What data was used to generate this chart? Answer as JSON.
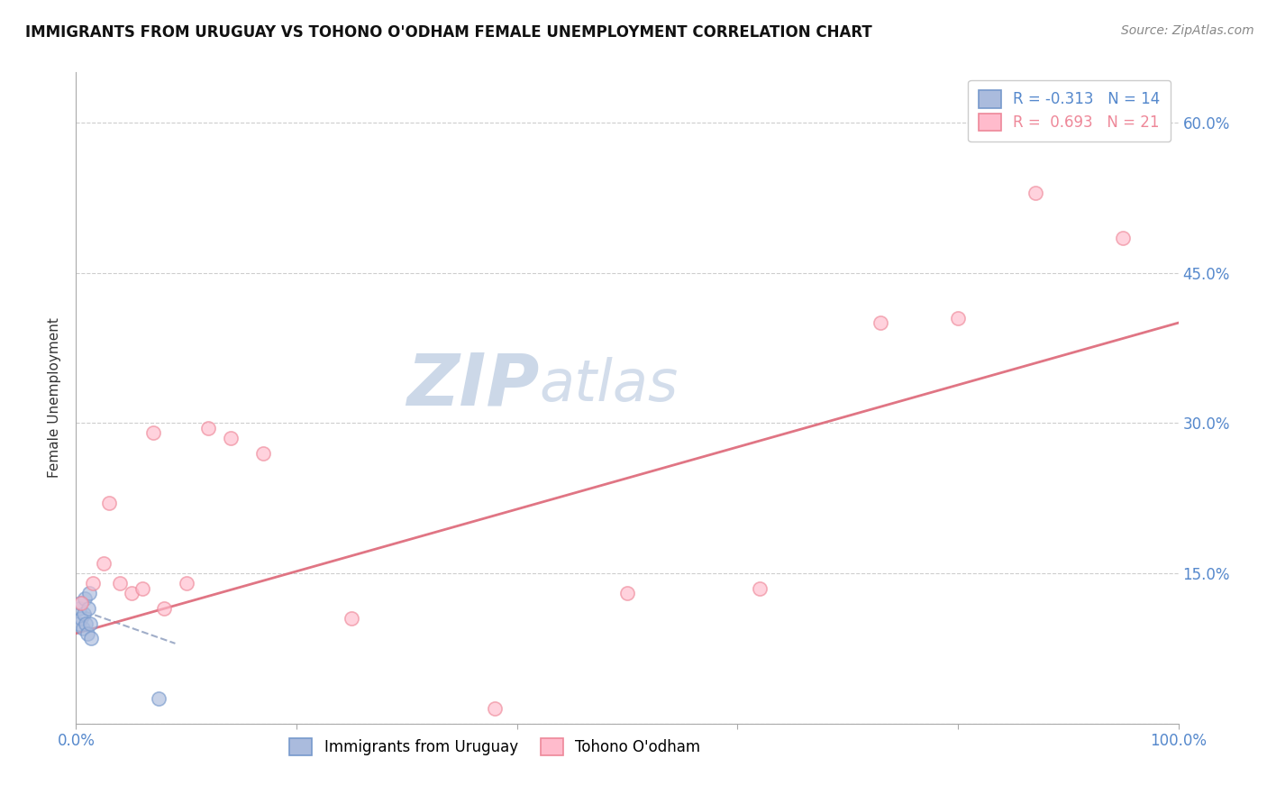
{
  "title": "IMMIGRANTS FROM URUGUAY VS TOHONO O'ODHAM FEMALE UNEMPLOYMENT CORRELATION CHART",
  "source": "Source: ZipAtlas.com",
  "ylabel": "Female Unemployment",
  "r_blue": -0.313,
  "n_blue": 14,
  "r_pink": 0.693,
  "n_pink": 21,
  "blue_points_x": [
    0.2,
    0.3,
    0.4,
    0.5,
    0.6,
    0.7,
    0.8,
    0.9,
    1.0,
    1.1,
    1.2,
    1.3,
    1.4,
    7.5
  ],
  "blue_points_y": [
    10.0,
    11.5,
    12.0,
    10.5,
    9.5,
    11.0,
    12.5,
    10.0,
    9.0,
    11.5,
    13.0,
    10.0,
    8.5,
    2.5
  ],
  "pink_points_x": [
    0.5,
    1.5,
    2.5,
    3.0,
    4.0,
    5.0,
    6.0,
    7.0,
    8.0,
    10.0,
    12.0,
    14.0,
    17.0,
    25.0,
    38.0,
    50.0,
    62.0,
    73.0,
    80.0,
    87.0,
    95.0
  ],
  "pink_points_y": [
    12.0,
    14.0,
    16.0,
    22.0,
    14.0,
    13.0,
    13.5,
    29.0,
    11.5,
    14.0,
    29.5,
    28.5,
    27.0,
    10.5,
    1.5,
    13.0,
    13.5,
    40.0,
    40.5,
    53.0,
    48.5
  ],
  "blue_line_x": [
    0,
    9
  ],
  "blue_line_y": [
    11.5,
    8.0
  ],
  "pink_line_x": [
    0,
    100
  ],
  "pink_line_y": [
    9.0,
    40.0
  ],
  "xlim": [
    0,
    100
  ],
  "ylim": [
    0,
    65
  ],
  "yticks": [
    0,
    15,
    30,
    45,
    60
  ],
  "ytick_labels": [
    "",
    "15.0%",
    "30.0%",
    "45.0%",
    "60.0%"
  ],
  "xticks": [
    0,
    20,
    40,
    60,
    80,
    100
  ],
  "xtick_labels": [
    "0.0%",
    "",
    "",
    "",
    "",
    "100.0%"
  ],
  "grid_color": "#c8c8c8",
  "blue_color": "#7799cc",
  "pink_color": "#ee8899",
  "blue_scatter_facecolor": "#aabbdd",
  "blue_scatter_edgecolor": "#7799cc",
  "pink_scatter_facecolor": "#ffbbcc",
  "pink_scatter_edgecolor": "#ee8899",
  "axis_label_color": "#5588cc",
  "watermark_text": "ZIPAtlas",
  "watermark_color": "#ccd8e8",
  "background_color": "#ffffff",
  "title_fontsize": 12,
  "source_fontsize": 10,
  "tick_label_fontsize": 12,
  "legend_fontsize": 12,
  "ylabel_fontsize": 11,
  "scatter_size": 120,
  "scatter_alpha": 0.65,
  "scatter_linewidths": 1.2,
  "pink_line_color": "#dd6677",
  "blue_line_color": "#8899bb"
}
